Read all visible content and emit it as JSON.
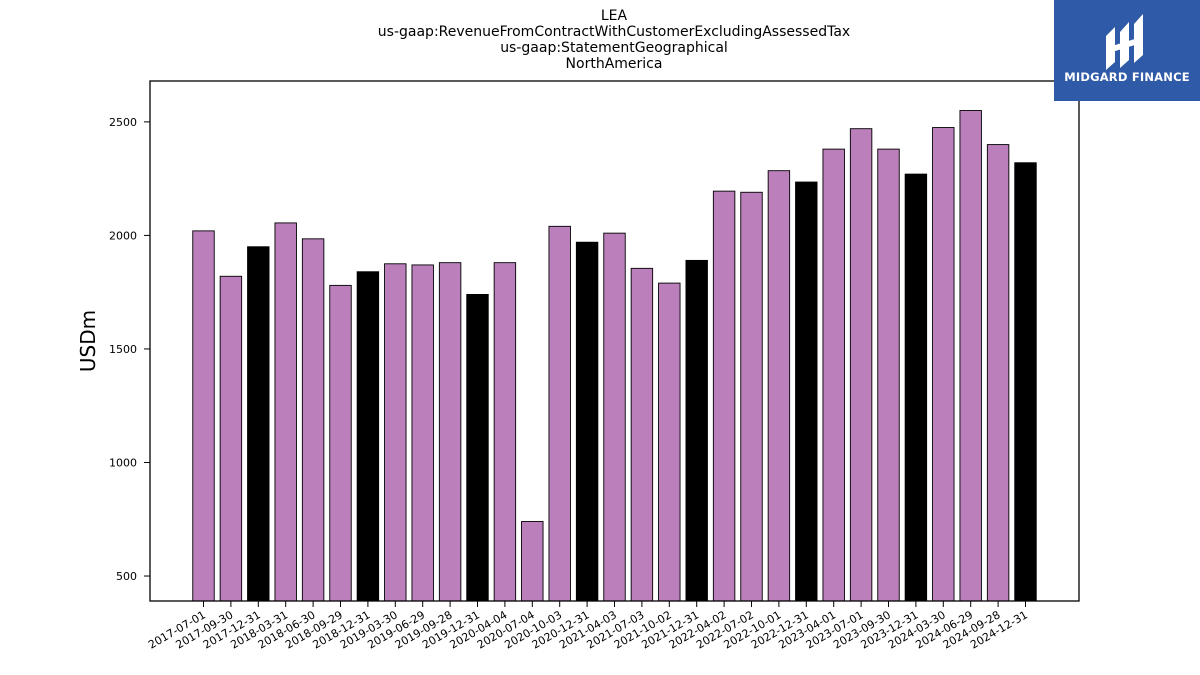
{
  "chart_data": {
    "type": "bar",
    "title_lines": [
      "LEA",
      "us-gaap:RevenueFromContractWithCustomerExcludingAssessedTax",
      "us-gaap:StatementGeographical",
      "NorthAmerica"
    ],
    "xlabel": "",
    "ylabel": "USDm",
    "ylim": [
      390,
      2680
    ],
    "yticks": [
      500,
      1000,
      1500,
      2000,
      2500
    ],
    "grid": false,
    "legend": "none",
    "categories": [
      "2017-07-01",
      "2017-09-30",
      "2017-12-31",
      "2018-03-31",
      "2018-06-30",
      "2018-09-29",
      "2018-12-31",
      "2019-03-30",
      "2019-06-29",
      "2019-09-28",
      "2019-12-31",
      "2020-04-04",
      "2020-07-04",
      "2020-10-03",
      "2020-12-31",
      "2021-04-03",
      "2021-07-03",
      "2021-10-02",
      "2021-12-31",
      "2022-04-02",
      "2022-07-02",
      "2022-10-01",
      "2022-12-31",
      "2023-04-01",
      "2023-07-01",
      "2023-09-30",
      "2023-12-31",
      "2024-03-30",
      "2024-06-29",
      "2024-09-28",
      "2024-12-31"
    ],
    "values": [
      2020,
      1820,
      1950,
      2055,
      1985,
      1780,
      1840,
      1875,
      1870,
      1880,
      1740,
      1880,
      740,
      2040,
      1970,
      2010,
      1855,
      1790,
      1890,
      2195,
      2190,
      2285,
      2235,
      2380,
      2470,
      2380,
      2270,
      2475,
      2550,
      2400,
      2320
    ],
    "highlight": [
      false,
      false,
      true,
      false,
      false,
      false,
      true,
      false,
      false,
      false,
      true,
      false,
      false,
      false,
      true,
      false,
      false,
      false,
      true,
      false,
      false,
      false,
      true,
      false,
      false,
      false,
      true,
      false,
      false,
      false,
      true
    ],
    "colors": {
      "regular": "#bb7fbc",
      "highlight": "#000000",
      "edge": "#000000"
    }
  },
  "logo": {
    "text": "MIDGARD FINANCE",
    "background": "#2f5aa8",
    "icon": "midgard-m-logo-icon"
  }
}
